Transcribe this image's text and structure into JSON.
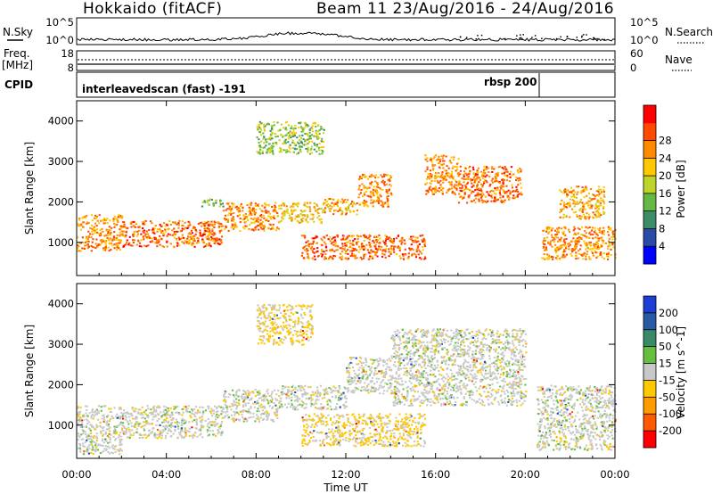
{
  "header": {
    "station": "Hokkaido (fitACF)",
    "beam_range": "Beam 11 23/Aug/2016 - 24/Aug/2016"
  },
  "noise_panel": {
    "left_label": "N.Sky",
    "right_label": "N.Search",
    "left_ticks": [
      "10^5",
      "10^0"
    ],
    "right_ticks": [
      "10^5",
      "10^0"
    ]
  },
  "freq_panel": {
    "left_label_1": "Freq.",
    "left_label_2": "[MHz]",
    "right_label": "Nave",
    "left_ticks": [
      "18",
      "8"
    ],
    "right_ticks": [
      "60",
      "0"
    ]
  },
  "cpid_panel": {
    "label": "CPID",
    "program_1": "interleavedscan (fast) -191",
    "program_2": "rbsp 200"
  },
  "x_axis": {
    "label": "Time UT",
    "ticks": [
      "00:00",
      "04:00",
      "08:00",
      "12:00",
      "16:00",
      "20:00",
      "00:00"
    ]
  },
  "power_panel": {
    "ylabel": "Slant Range [km]",
    "yticks": [
      "1000",
      "2000",
      "3000",
      "4000"
    ],
    "colorbar_label": "Power [dB]",
    "colorbar_ticks": [
      "4",
      "8",
      "12",
      "16",
      "20",
      "24",
      "28"
    ],
    "colorbar_colors": [
      "#0000ff",
      "#2a4aa8",
      "#3c8c6a",
      "#66b845",
      "#bdd42a",
      "#ffc800",
      "#ff8a00",
      "#ff4a00",
      "#ff0000"
    ]
  },
  "velocity_panel": {
    "ylabel": "Slant Range [km]",
    "yticks": [
      "1000",
      "2000",
      "3000",
      "4000"
    ],
    "colorbar_label": "Velocity [m s^-1]",
    "colorbar_ticks": [
      "200",
      "100",
      "50",
      "15",
      "-15",
      "-50",
      "-100",
      "-200"
    ],
    "colorbar_colors": [
      "#1d3fd6",
      "#2a5aa6",
      "#3a8a6a",
      "#66c040",
      "#c8c8c8",
      "#ffc800",
      "#ff9a00",
      "#ff5a00",
      "#ff0000"
    ]
  },
  "chart_data": {
    "type": "heatmap",
    "x_range_hours": [
      0,
      24
    ],
    "y_range_km": [
      180,
      4500
    ],
    "power_bands": [
      {
        "from_h": 0.0,
        "to_h": 2.0,
        "km_low": 800,
        "km_high": 1700,
        "level_db": 24
      },
      {
        "from_h": 2.0,
        "to_h": 6.5,
        "km_low": 900,
        "km_high": 1550,
        "level_db": 26
      },
      {
        "from_h": 6.5,
        "to_h": 9.0,
        "km_low": 1300,
        "km_high": 2000,
        "level_db": 24
      },
      {
        "from_h": 9.0,
        "to_h": 11.0,
        "km_low": 1500,
        "km_high": 2000,
        "level_db": 20
      },
      {
        "from_h": 11.0,
        "to_h": 12.5,
        "km_low": 1700,
        "km_high": 2100,
        "level_db": 22
      },
      {
        "from_h": 12.5,
        "to_h": 14.0,
        "km_low": 1900,
        "km_high": 2700,
        "level_db": 24
      },
      {
        "from_h": 10.0,
        "to_h": 15.5,
        "km_low": 600,
        "km_high": 1200,
        "level_db": 26
      },
      {
        "from_h": 15.5,
        "to_h": 17.0,
        "km_low": 2200,
        "km_high": 3200,
        "level_db": 24
      },
      {
        "from_h": 17.0,
        "to_h": 19.8,
        "km_low": 2000,
        "km_high": 2900,
        "level_db": 26
      },
      {
        "from_h": 20.7,
        "to_h": 24.0,
        "km_low": 600,
        "km_high": 1400,
        "level_db": 24
      },
      {
        "from_h": 21.5,
        "to_h": 23.5,
        "km_low": 1600,
        "km_high": 2400,
        "level_db": 22
      },
      {
        "from_h": 8.0,
        "to_h": 11.0,
        "km_low": 3200,
        "km_high": 4000,
        "level_db": 14
      },
      {
        "from_h": 5.5,
        "to_h": 6.5,
        "km_low": 1900,
        "km_high": 2100,
        "level_db": 12
      }
    ],
    "velocity_bands": [
      {
        "from_h": 0.0,
        "to_h": 2.0,
        "km_low": 300,
        "km_high": 1500,
        "vel": 0
      },
      {
        "from_h": 2.0,
        "to_h": 6.5,
        "km_low": 700,
        "km_high": 1500,
        "vel": 0
      },
      {
        "from_h": 6.5,
        "to_h": 9.0,
        "km_low": 1100,
        "km_high": 1900,
        "vel": 0
      },
      {
        "from_h": 9.0,
        "to_h": 12.0,
        "km_low": 1400,
        "km_high": 2000,
        "vel": 0
      },
      {
        "from_h": 12.0,
        "to_h": 14.0,
        "km_low": 1800,
        "km_high": 2700,
        "vel": 0
      },
      {
        "from_h": 10.0,
        "to_h": 15.5,
        "km_low": 500,
        "km_high": 1300,
        "vel": -20
      },
      {
        "from_h": 14.0,
        "to_h": 20.0,
        "km_low": 1500,
        "km_high": 3400,
        "vel": 0
      },
      {
        "from_h": 20.5,
        "to_h": 24.0,
        "km_low": 400,
        "km_high": 2000,
        "vel": 0
      },
      {
        "from_h": 8.0,
        "to_h": 10.5,
        "km_low": 3000,
        "km_high": 4000,
        "vel": -20
      }
    ]
  }
}
